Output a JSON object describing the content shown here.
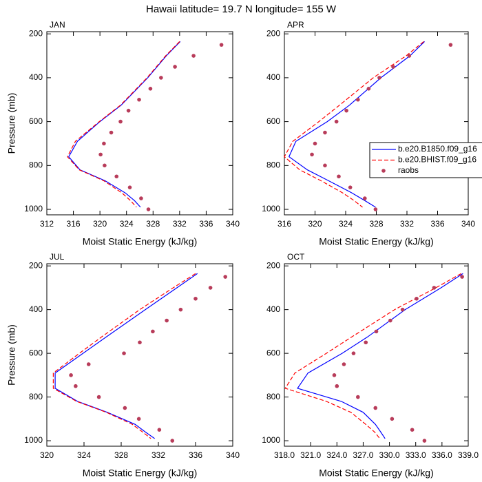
{
  "title": "Hawaii  latitude= 19.7 N longitude= 155 W",
  "chart_data": [
    {
      "type": "line",
      "title": "JAN",
      "x_label": "Moist Static Energy (kJ/kg)",
      "y_label": "Pressure (mb)",
      "xlim": [
        312,
        340
      ],
      "xticks": [
        312,
        316,
        320,
        324,
        328,
        332,
        336,
        340
      ],
      "ylim": [
        1025,
        190
      ],
      "yticks": [
        200,
        400,
        600,
        800,
        1000
      ],
      "legend": false,
      "series": [
        {
          "color": "#0000ff",
          "style": "solid",
          "values": [
            332.1,
            330.0,
            327.2,
            323.2,
            320.0,
            316.6,
            315.3,
            317.0,
            320.8,
            323.8,
            325.2,
            326.1
          ],
          "pressure": [
            235,
            300,
            400,
            525,
            600,
            690,
            760,
            820,
            870,
            925,
            960,
            990
          ]
        },
        {
          "color": "#ff0000",
          "style": "dashed",
          "values": [
            332.0,
            329.9,
            327.1,
            323.1,
            319.9,
            316.3,
            315.1,
            316.9,
            320.6,
            323.3,
            324.6,
            325.5
          ],
          "pressure": [
            235,
            300,
            400,
            525,
            600,
            690,
            760,
            820,
            870,
            925,
            960,
            990
          ]
        },
        {
          "color": "#b83c5a",
          "style": "markers",
          "values": [
            338.3,
            334.1,
            331.3,
            329.2,
            327.6,
            325.9,
            324.3,
            323.1,
            321.7,
            320.6,
            320.1,
            320.7,
            322.5,
            324.5,
            326.2,
            327.3
          ],
          "pressure": [
            250,
            300,
            350,
            400,
            450,
            500,
            550,
            600,
            650,
            700,
            750,
            800,
            850,
            900,
            950,
            1000
          ]
        }
      ]
    },
    {
      "type": "line",
      "title": "APR",
      "x_label": "Moist Static Energy (kJ/kg)",
      "xlim": [
        316,
        340
      ],
      "xticks": [
        316,
        320,
        324,
        328,
        332,
        336,
        340
      ],
      "ylim": [
        1025,
        190
      ],
      "yticks": [
        200,
        400,
        600,
        800,
        1000
      ],
      "legend": true,
      "series": [
        {
          "name": "b.e20.B1850.f09_g16",
          "color": "#0000ff",
          "style": "solid",
          "values": [
            334.3,
            332.4,
            328.6,
            324.5,
            321.6,
            317.5,
            316.6,
            319.0,
            321.8,
            324.8,
            326.5,
            327.9
          ],
          "pressure": [
            235,
            300,
            400,
            525,
            600,
            690,
            760,
            820,
            870,
            925,
            960,
            990
          ]
        },
        {
          "name": "b.e20.BHIST.f09_g16",
          "color": "#ff0000",
          "style": "dashed",
          "values": [
            334.2,
            331.9,
            327.6,
            323.2,
            320.5,
            317.1,
            316.0,
            318.0,
            320.8,
            323.6,
            325.1,
            326.2
          ],
          "pressure": [
            235,
            300,
            400,
            525,
            600,
            690,
            760,
            820,
            870,
            925,
            960,
            990
          ]
        },
        {
          "name": "raobs",
          "color": "#b83c5a",
          "style": "markers",
          "values": [
            337.7,
            332.3,
            330.2,
            328.4,
            327.0,
            325.6,
            324.1,
            322.8,
            321.3,
            320.0,
            319.6,
            321.3,
            323.1,
            324.6,
            326.5,
            327.9
          ],
          "pressure": [
            250,
            300,
            350,
            400,
            450,
            500,
            550,
            600,
            650,
            700,
            750,
            800,
            850,
            900,
            950,
            1000
          ]
        }
      ]
    },
    {
      "type": "line",
      "title": "JUL",
      "x_label": "Moist Static Energy (kJ/kg)",
      "y_label": "Pressure (mb)",
      "xlim": [
        320,
        340
      ],
      "xticks": [
        320,
        324,
        328,
        332,
        336,
        340
      ],
      "ylim": [
        1025,
        190
      ],
      "yticks": [
        200,
        400,
        600,
        800,
        1000
      ],
      "legend": false,
      "series": [
        {
          "color": "#0000ff",
          "style": "solid",
          "values": [
            336.2,
            334.0,
            330.6,
            326.4,
            323.9,
            320.9,
            320.9,
            323.3,
            326.5,
            329.5,
            330.6,
            331.6
          ],
          "pressure": [
            235,
            300,
            400,
            525,
            600,
            690,
            760,
            820,
            870,
            925,
            960,
            990
          ]
        },
        {
          "color": "#ff0000",
          "style": "dashed",
          "values": [
            336.0,
            333.6,
            330.0,
            325.9,
            323.5,
            320.7,
            320.7,
            323.2,
            326.4,
            329.2,
            330.3,
            331.2
          ],
          "pressure": [
            235,
            300,
            400,
            525,
            600,
            690,
            760,
            820,
            870,
            925,
            960,
            990
          ]
        },
        {
          "color": "#b83c5a",
          "style": "markers",
          "values": [
            339.2,
            337.6,
            336.0,
            334.4,
            332.9,
            331.4,
            330.0,
            328.3,
            324.5,
            322.6,
            323.1,
            325.6,
            328.4,
            329.9,
            332.1,
            333.5
          ],
          "pressure": [
            250,
            300,
            350,
            400,
            450,
            500,
            550,
            600,
            650,
            700,
            750,
            800,
            850,
            900,
            950,
            1000
          ]
        }
      ]
    },
    {
      "type": "line",
      "title": "OCT",
      "x_label": "Moist Static Energy (kJ/kg)",
      "xlim": [
        318,
        339
      ],
      "xticks": [
        {
          "value": 318,
          "label": "318.0"
        },
        {
          "value": 321,
          "label": "321.0"
        },
        {
          "value": 324,
          "label": "324.0"
        },
        {
          "value": 327,
          "label": "327.0"
        },
        {
          "value": 330,
          "label": "330.0"
        },
        {
          "value": 333,
          "label": "333.0"
        },
        {
          "value": 336,
          "label": "336.0"
        },
        {
          "value": 339,
          "label": "339.0"
        }
      ],
      "ylim": [
        1025,
        190
      ],
      "yticks": [
        200,
        400,
        600,
        800,
        1000
      ],
      "legend": false,
      "series": [
        {
          "color": "#0000ff",
          "style": "solid",
          "values": [
            338.4,
            335.9,
            331.8,
            327.5,
            324.6,
            320.7,
            319.5,
            324.5,
            327.0,
            328.4,
            329.0,
            329.5
          ],
          "pressure": [
            235,
            300,
            400,
            525,
            600,
            690,
            760,
            820,
            870,
            925,
            960,
            990
          ]
        },
        {
          "color": "#ff0000",
          "style": "dashed",
          "values": [
            338.2,
            335.3,
            330.6,
            325.7,
            322.8,
            319.2,
            318.1,
            322.8,
            325.6,
            327.3,
            328.3,
            328.9
          ],
          "pressure": [
            235,
            300,
            400,
            525,
            600,
            690,
            760,
            820,
            870,
            925,
            960,
            990
          ]
        },
        {
          "color": "#b83c5a",
          "style": "markers",
          "values": [
            338.3,
            335.1,
            333.1,
            331.5,
            330.1,
            328.5,
            327.3,
            325.9,
            324.8,
            323.7,
            324.0,
            326.4,
            328.4,
            330.3,
            332.6,
            334.0
          ],
          "pressure": [
            250,
            300,
            350,
            400,
            450,
            500,
            550,
            600,
            650,
            700,
            750,
            800,
            850,
            900,
            950,
            1000
          ]
        }
      ]
    }
  ]
}
